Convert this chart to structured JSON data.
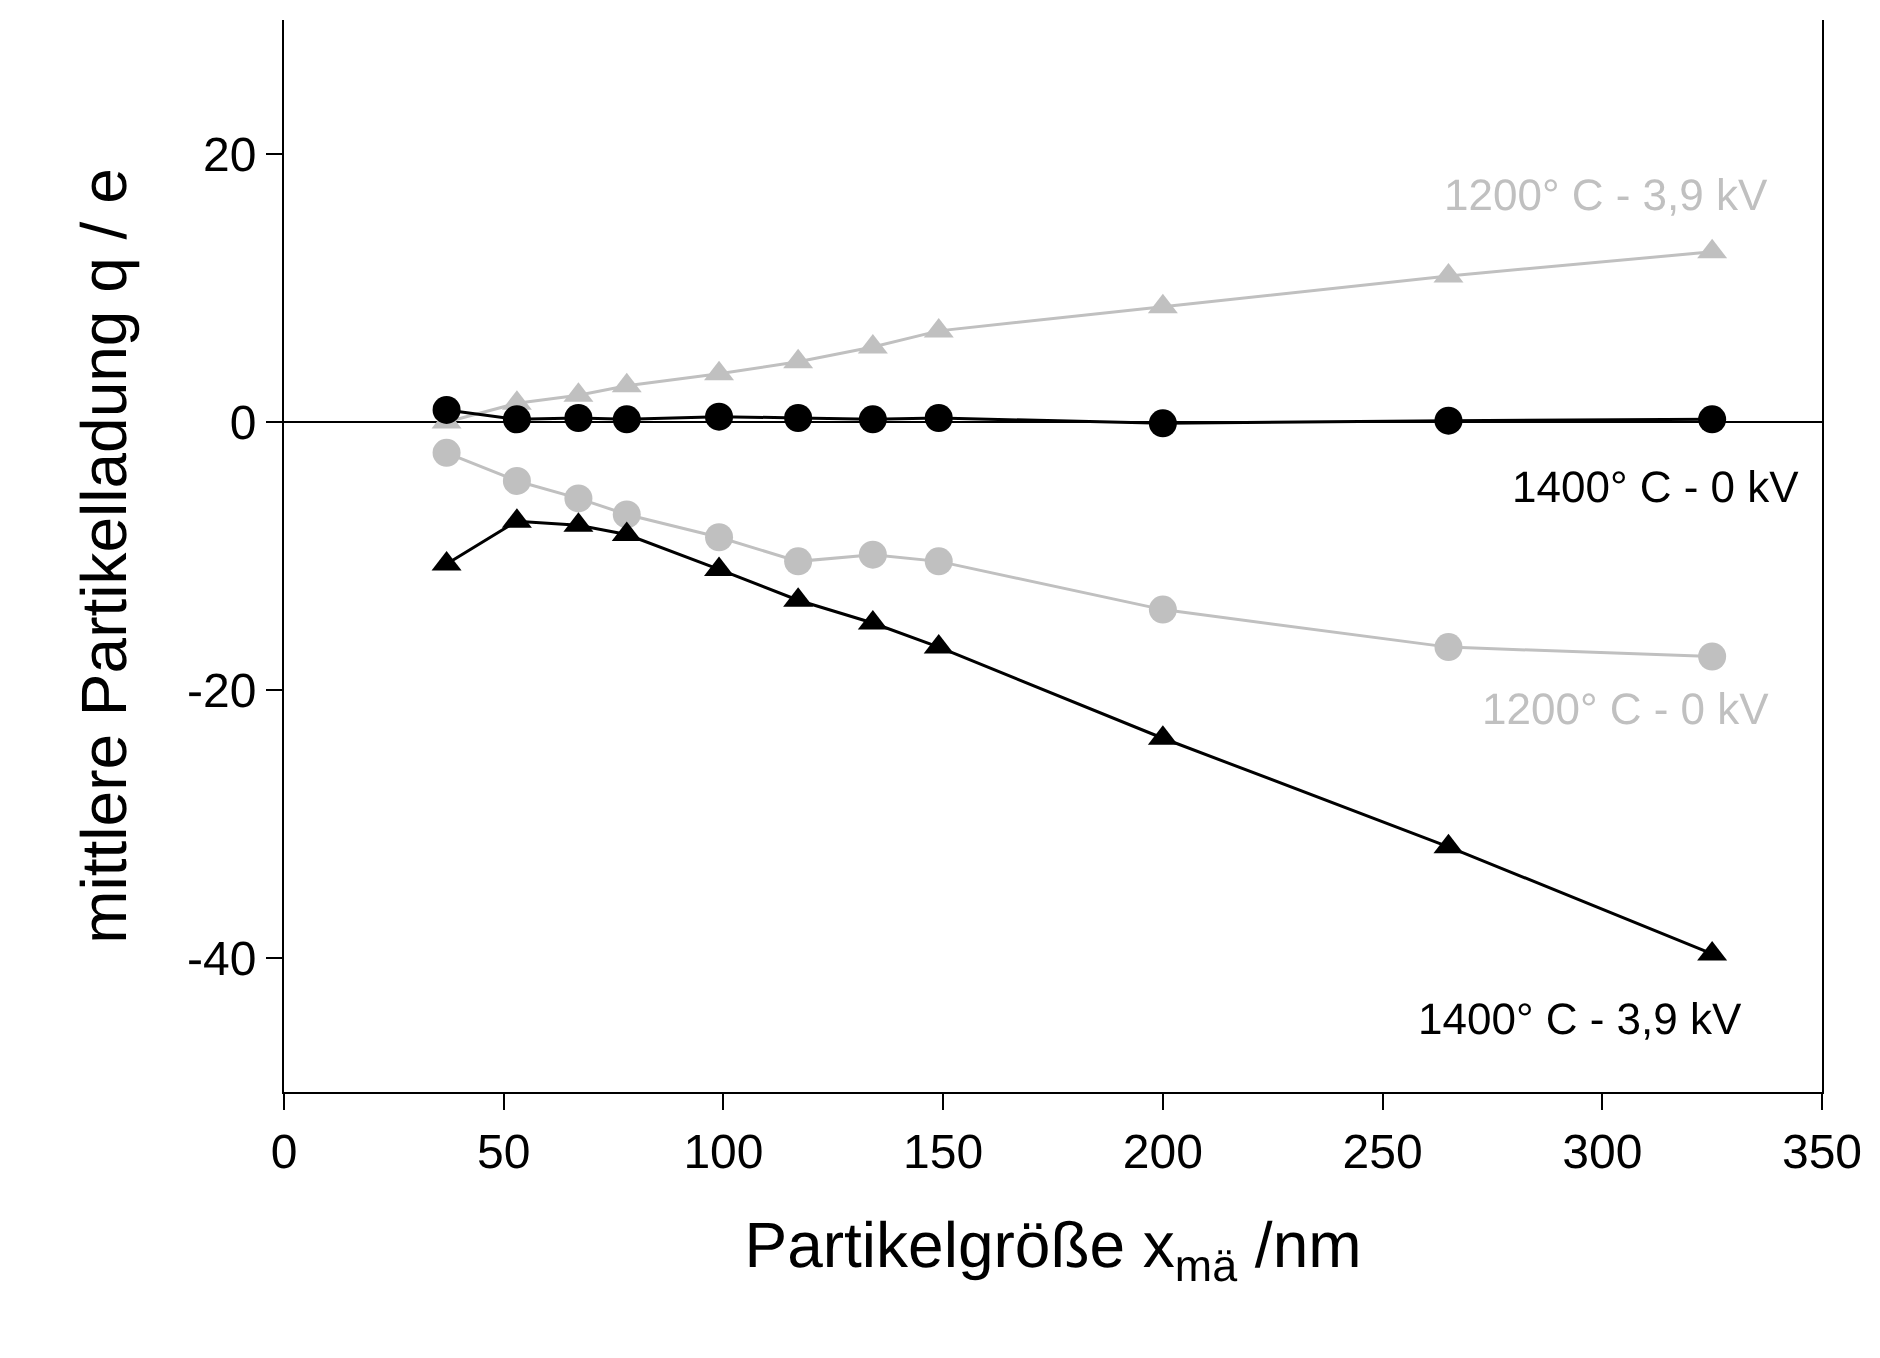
{
  "chart_data": {
    "type": "line",
    "xlabel": "Partikelgröße x$_{mä}$ /nm",
    "ylabel": "mittlere Partikelladung q / e",
    "xlim": [
      0,
      350
    ],
    "xticks": [
      0,
      50,
      100,
      150,
      200,
      250,
      300,
      350
    ],
    "ylim": [
      -50,
      30
    ],
    "yticks": [
      -40,
      -20,
      0,
      20
    ],
    "grid": false,
    "legend": false,
    "ref_lines": [
      {
        "axis": "y",
        "value": 0,
        "color": "#000000"
      }
    ],
    "series": [
      {
        "name": "1200° C - 3,9 kV",
        "color": "#c0c0c0",
        "marker": "triangle",
        "x": [
          37,
          53,
          67,
          78,
          99,
          117,
          134,
          149,
          200,
          265,
          325
        ],
        "values": [
          0,
          1.4,
          2,
          2.7,
          3.6,
          4.5,
          5.6,
          6.8,
          8.6,
          10.9,
          12.7
        ]
      },
      {
        "name": "1400° C - 0 kV",
        "color": "#000000",
        "marker": "circle",
        "x": [
          37,
          53,
          67,
          78,
          99,
          117,
          134,
          149,
          200,
          265,
          325
        ],
        "values": [
          0.9,
          0.2,
          0.3,
          0.2,
          0.4,
          0.3,
          0.2,
          0.3,
          -0.1,
          0.1,
          0.2
        ]
      },
      {
        "name": "1200° C - 0 kV",
        "color": "#c0c0c0",
        "marker": "circle",
        "x": [
          37,
          53,
          67,
          78,
          99,
          117,
          134,
          149,
          200,
          265,
          325
        ],
        "values": [
          -2.3,
          -4.4,
          -5.7,
          -6.9,
          -8.6,
          -10.4,
          -9.9,
          -10.4,
          -14,
          -16.8,
          -17.5
        ]
      },
      {
        "name": "1400° C - 3,9 kV",
        "color": "#000000",
        "marker": "triangle",
        "x": [
          37,
          53,
          67,
          78,
          99,
          117,
          134,
          149,
          200,
          265,
          325
        ],
        "values": [
          -10.6,
          -7.4,
          -7.7,
          -8.4,
          -11,
          -13.3,
          -15,
          -16.8,
          -23.6,
          -31.7,
          -39.7
        ]
      }
    ]
  }
}
